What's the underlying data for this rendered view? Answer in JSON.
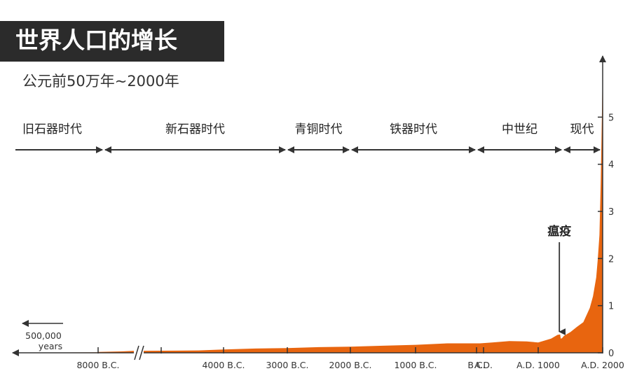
{
  "header": {
    "title": "世界人口的增长",
    "subtitle": "公元前50万年~2000年"
  },
  "colors": {
    "fill": "#e8650f",
    "axis": "#333333",
    "title_bg": "#2b2b2b"
  },
  "chart_data": {
    "type": "area",
    "y_unit_note": "",
    "ylim": [
      0,
      6
    ],
    "yticks": [
      "0",
      "1",
      "2",
      "3",
      "4",
      "5"
    ],
    "xticks": [
      {
        "label": "8000 B.C.",
        "year": -8000
      },
      {
        "label": "4000 B.C.",
        "year": -4000
      },
      {
        "label": "3000 B.C.",
        "year": -3000
      },
      {
        "label": "2000 B.C.",
        "year": -2000
      },
      {
        "label": "1000 B.C.",
        "year": -1000
      },
      {
        "label": "B.C.",
        "year": -50
      },
      {
        "label": "A.D.",
        "year": 50
      },
      {
        "label": "A.D. 1000",
        "year": 1000
      },
      {
        "label": "A.D. 2000",
        "year": 2000
      }
    ],
    "scale_note": {
      "label_line1": "500,000",
      "label_line2": "years"
    },
    "periods": [
      {
        "name": "旧石器时代",
        "start": -500000,
        "end": -8000
      },
      {
        "name": "新石器时代",
        "start": -8000,
        "end": -3000
      },
      {
        "name": "青铜时代",
        "start": -3000,
        "end": -2000
      },
      {
        "name": "铁器时代",
        "start": -2000,
        "end": 0
      },
      {
        "name": "中世纪",
        "start": 0,
        "end": 1350
      },
      {
        "name": "现代",
        "start": 1350,
        "end": 2000
      }
    ],
    "annotation": {
      "text": "瘟疫",
      "year": 1350,
      "value": 0.37
    },
    "series": [
      {
        "x": [
          -500000,
          -10000,
          -8000,
          -7000,
          -6500,
          -5000,
          -4000,
          -3500,
          -3000,
          -2500,
          -2000,
          -1500,
          -1000,
          -500,
          0,
          200,
          500,
          800,
          1000,
          1200,
          1300,
          1340,
          1350,
          1370,
          1400,
          1500,
          1600,
          1700,
          1800,
          1850,
          1900,
          1925,
          1950,
          1970,
          1990,
          2000
        ],
        "y": [
          0.005,
          0.01,
          0.02,
          0.03,
          0.04,
          0.05,
          0.07,
          0.09,
          0.1,
          0.12,
          0.13,
          0.15,
          0.17,
          0.2,
          0.2,
          0.22,
          0.25,
          0.24,
          0.22,
          0.3,
          0.38,
          0.39,
          0.3,
          0.31,
          0.36,
          0.44,
          0.55,
          0.65,
          0.95,
          1.2,
          1.6,
          2.0,
          2.5,
          3.6,
          5.2,
          6.0
        ]
      }
    ]
  }
}
